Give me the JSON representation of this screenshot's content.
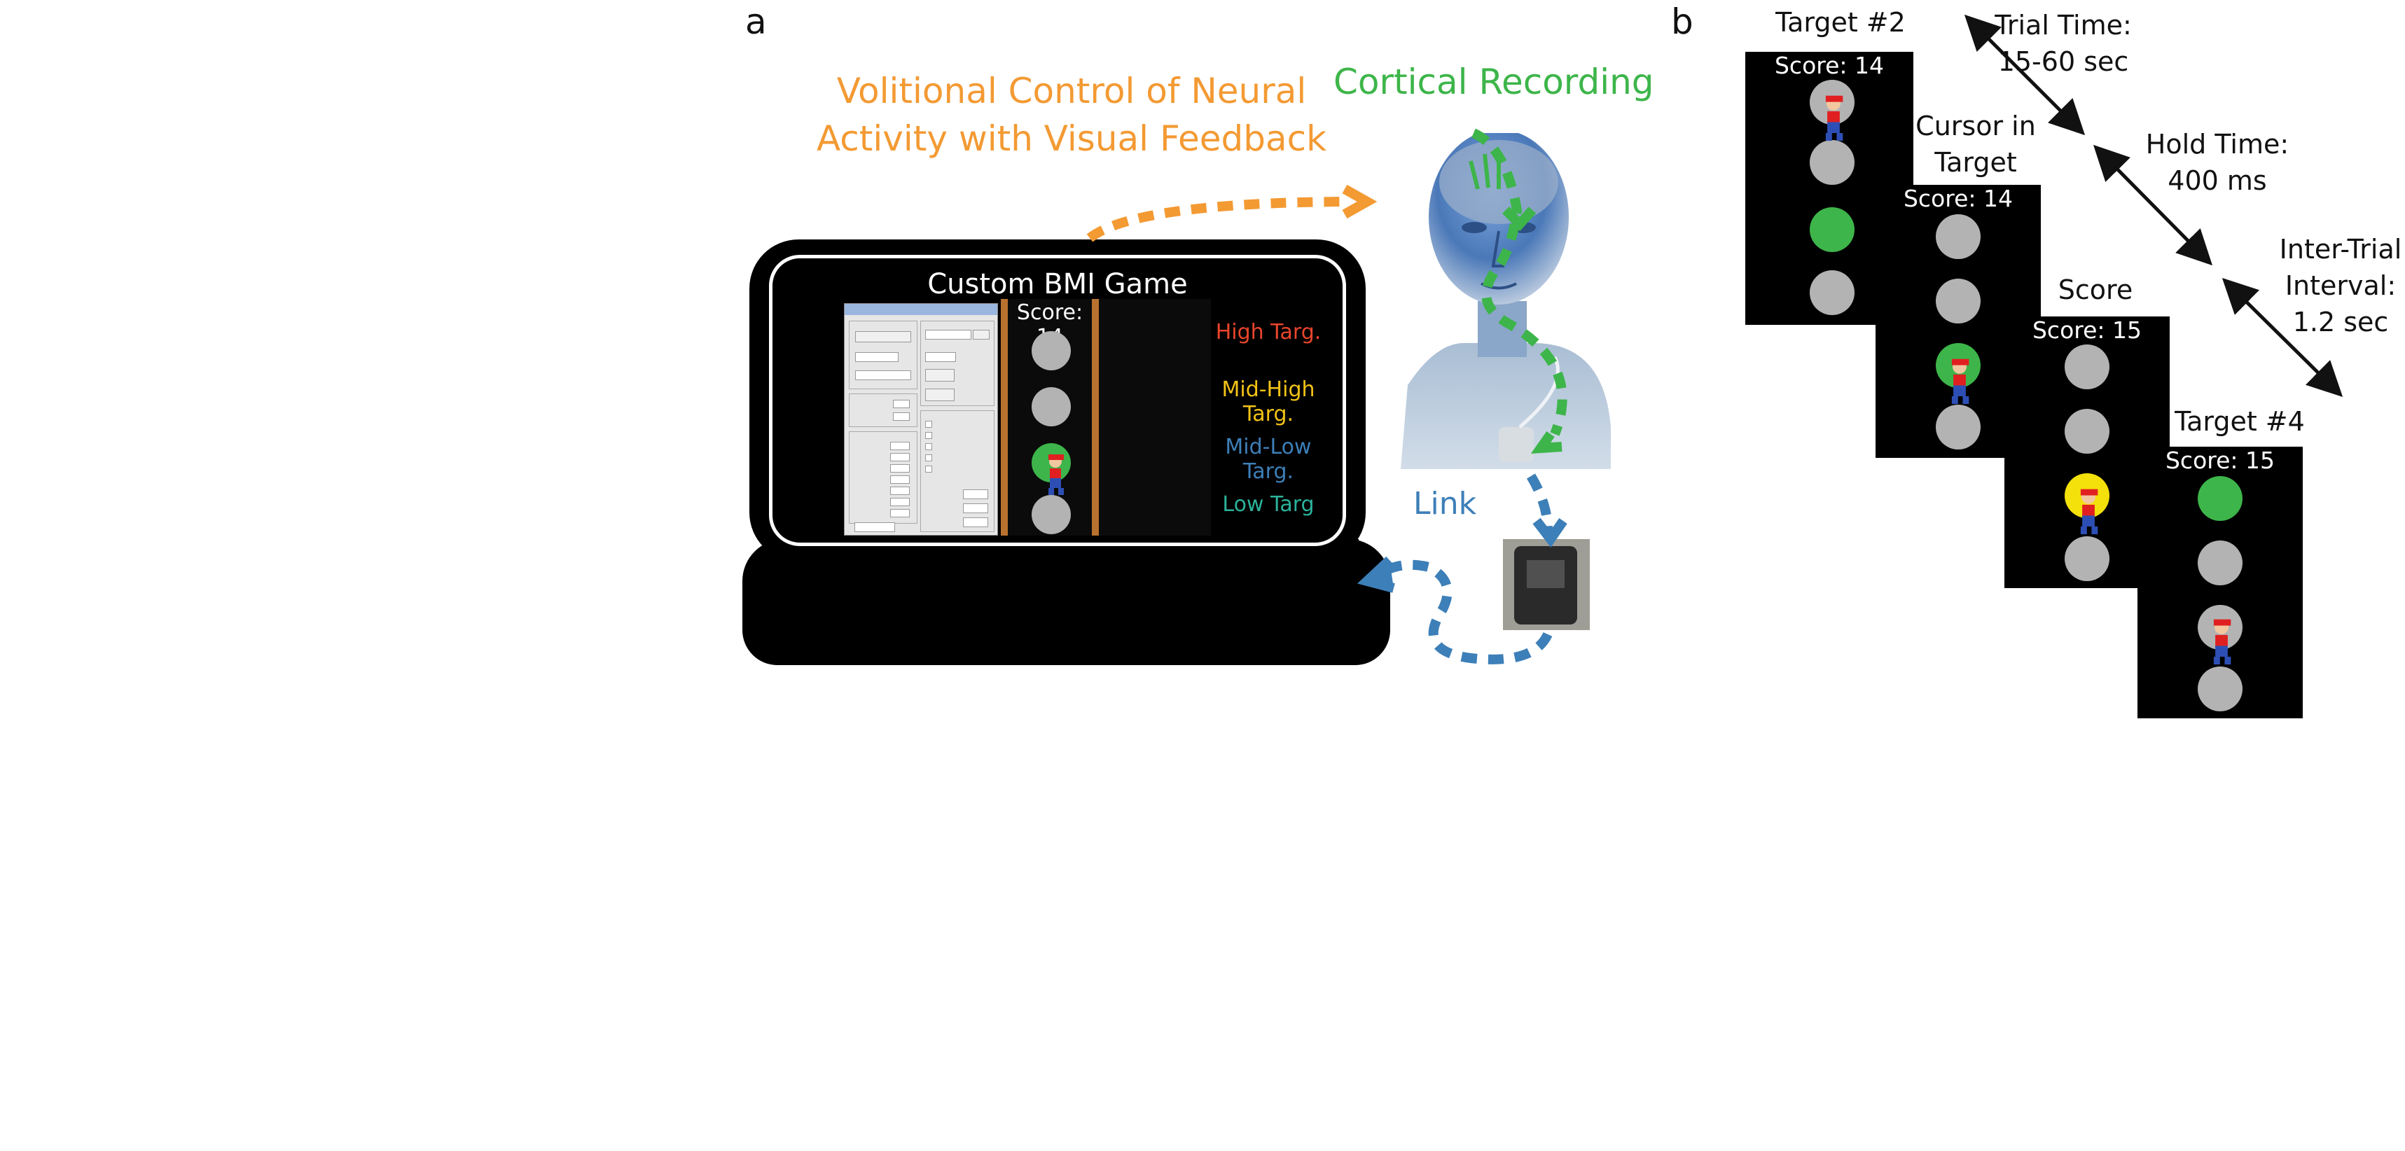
{
  "panel_a": {
    "letter": "a",
    "volitional_caption_line1": "Volitional Control of Neural",
    "volitional_caption_line2": "Activity with Visual Feedback",
    "cortical_caption": "Cortical Recording",
    "link_caption": "Link",
    "game_title": "Custom BMI Game",
    "game_score": "Score: 14",
    "targets": [
      "High Targ.",
      "Mid-High Targ.",
      "Mid-Low Targ.",
      "Low Targ"
    ],
    "target_colors": [
      "#e8452c",
      "#f2c317",
      "#3d7fb8",
      "#2bb39b"
    ],
    "colors": {
      "orange": "#f39a33",
      "green": "#3db54a",
      "blue": "#3d7fb8",
      "rail": "#b8722f"
    }
  },
  "panel_b": {
    "letter": "b",
    "frames": [
      {
        "title": "Target #2",
        "score": "Score: 14"
      },
      {
        "title_line1": "Cursor in",
        "title_line2": "Target",
        "score": "Score: 14"
      },
      {
        "title": "Score",
        "score": "Score: 15"
      },
      {
        "title": "Target #4",
        "score": "Score: 15"
      }
    ],
    "intervals": [
      {
        "line1": "Trial Time:",
        "line2": "15-60 sec"
      },
      {
        "line1": "Hold Time:",
        "line2": "400 ms"
      },
      {
        "line1": "Inter-Trial",
        "line2": "Interval:",
        "line3": "1.2 sec"
      }
    ]
  }
}
